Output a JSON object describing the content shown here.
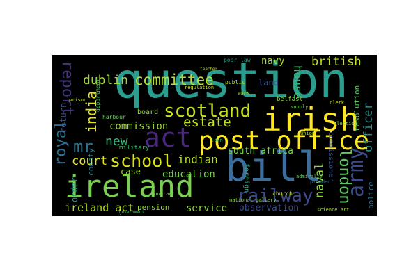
{
  "words": [
    {
      "key": "question",
      "text": "question",
      "color": "#2a9d8f"
    },
    {
      "key": "bill",
      "text": "bill",
      "color": "#3b6fa0"
    },
    {
      "key": "ireland",
      "text": "ireland",
      "color": "#7ad151"
    },
    {
      "key": "irish",
      "text": "irish",
      "color": "#fde725"
    },
    {
      "key": "post_office",
      "text": "post office",
      "color": "#fde725"
    },
    {
      "key": "act",
      "text": "act",
      "color": "#482878"
    },
    {
      "key": "railway",
      "text": "railway",
      "color": "#3e4a89"
    },
    {
      "key": "army",
      "text": "army",
      "color": "#3e4a89"
    },
    {
      "key": "scotland",
      "text": "scotland",
      "color": "#c7e020"
    },
    {
      "key": "school",
      "text": "school",
      "color": "#d8e219"
    },
    {
      "key": "committee",
      "text": "committee",
      "color": "#b5de2b"
    },
    {
      "key": "dublin",
      "text": "dublin",
      "color": "#a0da39"
    },
    {
      "key": "report",
      "text": "report",
      "color": "#46337e"
    },
    {
      "key": "india",
      "text": "india",
      "color": "#e5e419"
    },
    {
      "key": "mr",
      "text": "mr",
      "color": "#2c728e"
    },
    {
      "key": "new",
      "text": "new",
      "color": "#35b779"
    },
    {
      "key": "royal",
      "text": "royal",
      "color": "#2e6e8e"
    },
    {
      "key": "estate",
      "text": "estate",
      "color": "#c2df23"
    },
    {
      "key": "commission",
      "text": "commission",
      "color": "#9bd93c"
    },
    {
      "key": "court",
      "text": "court",
      "color": "#e5e419"
    },
    {
      "key": "indian",
      "text": "indian",
      "color": "#b5de2b"
    },
    {
      "key": "london",
      "text": "london",
      "color": "#5ec962"
    },
    {
      "key": "naval",
      "text": "naval",
      "color": "#8fd744"
    },
    {
      "key": "house",
      "text": "house",
      "color": "#38b977"
    },
    {
      "key": "british",
      "text": "british",
      "color": "#c2df23"
    },
    {
      "key": "navy",
      "text": "navy",
      "color": "#a8db34"
    },
    {
      "key": "officer",
      "text": "officer",
      "color": "#21918c"
    },
    {
      "key": "south_africa",
      "text": "south africa",
      "color": "#7ad151"
    },
    {
      "key": "education",
      "text": "education",
      "color": "#7ad151"
    },
    {
      "key": "service",
      "text": "service",
      "color": "#8fd744"
    },
    {
      "key": "ireland_act",
      "text": "ireland act",
      "color": "#b5de2b"
    },
    {
      "key": "pension",
      "text": "pension",
      "color": "#9bd93c"
    },
    {
      "key": "observation",
      "text": "observation",
      "color": "#3e4a89"
    },
    {
      "key": "case",
      "text": "case",
      "color": "#a0da39"
    },
    {
      "key": "order",
      "text": "order",
      "color": "#1f988b"
    },
    {
      "key": "county",
      "text": "county",
      "color": "#277f8e"
    },
    {
      "key": "return",
      "text": "return",
      "color": "#3b528b"
    },
    {
      "key": "land",
      "text": "land",
      "color": "#3b528b"
    },
    {
      "key": "resolution",
      "text": "resolution",
      "color": "#5ec962"
    },
    {
      "key": "police",
      "text": "police",
      "color": "#2e6e8e"
    },
    {
      "key": "commissioner",
      "text": "commissioner",
      "color": "#3b528b"
    },
    {
      "key": "board",
      "text": "board",
      "color": "#95d840"
    },
    {
      "key": "department",
      "text": "department",
      "color": "#4ac16d"
    },
    {
      "key": "military",
      "text": "military",
      "color": "#3dbc74"
    },
    {
      "key": "harbour",
      "text": "harbour",
      "color": "#6ccd5a"
    },
    {
      "key": "belfast",
      "text": "belfast",
      "color": "#8fd744"
    },
    {
      "key": "foreign",
      "text": "foreign",
      "color": "#29af7f"
    },
    {
      "key": "public",
      "text": "public",
      "color": "#b5de2b"
    },
    {
      "key": "poor_law",
      "text": "poor law",
      "color": "#1fa187"
    },
    {
      "key": "prison",
      "text": "prison",
      "color": "#b5de2b"
    },
    {
      "key": "regulation",
      "text": "regulation",
      "color": "#d2e21b"
    },
    {
      "key": "supply",
      "text": "supply",
      "color": "#7ad151"
    },
    {
      "key": "church",
      "text": "church",
      "color": "#bddf26"
    },
    {
      "key": "science_art",
      "text": "science art",
      "color": "#a0da39"
    },
    {
      "key": "national_gallery",
      "text": "national gallery",
      "color": "#8fd744"
    },
    {
      "key": "contract",
      "text": "contract",
      "color": "#6ccd5a"
    },
    {
      "key": "pleaded",
      "text": "pleaded",
      "color": "#2c728e"
    },
    {
      "key": "clerk",
      "text": "clerk",
      "color": "#d2e21b"
    },
    {
      "key": "union",
      "text": "union",
      "color": "#b5de2b"
    },
    {
      "key": "admiralty",
      "text": "admiralty",
      "color": "#5ec962"
    },
    {
      "key": "work",
      "text": "work",
      "color": "#95d840"
    },
    {
      "key": "loan",
      "text": "loan",
      "color": "#3dbc74"
    },
    {
      "key": "teacher",
      "text": "teacher",
      "color": "#b5de2b"
    },
    {
      "key": "government",
      "text": "government",
      "color": "#4ac16d"
    },
    {
      "key": "election",
      "text": "election",
      "color": "#8fd744"
    }
  ]
}
